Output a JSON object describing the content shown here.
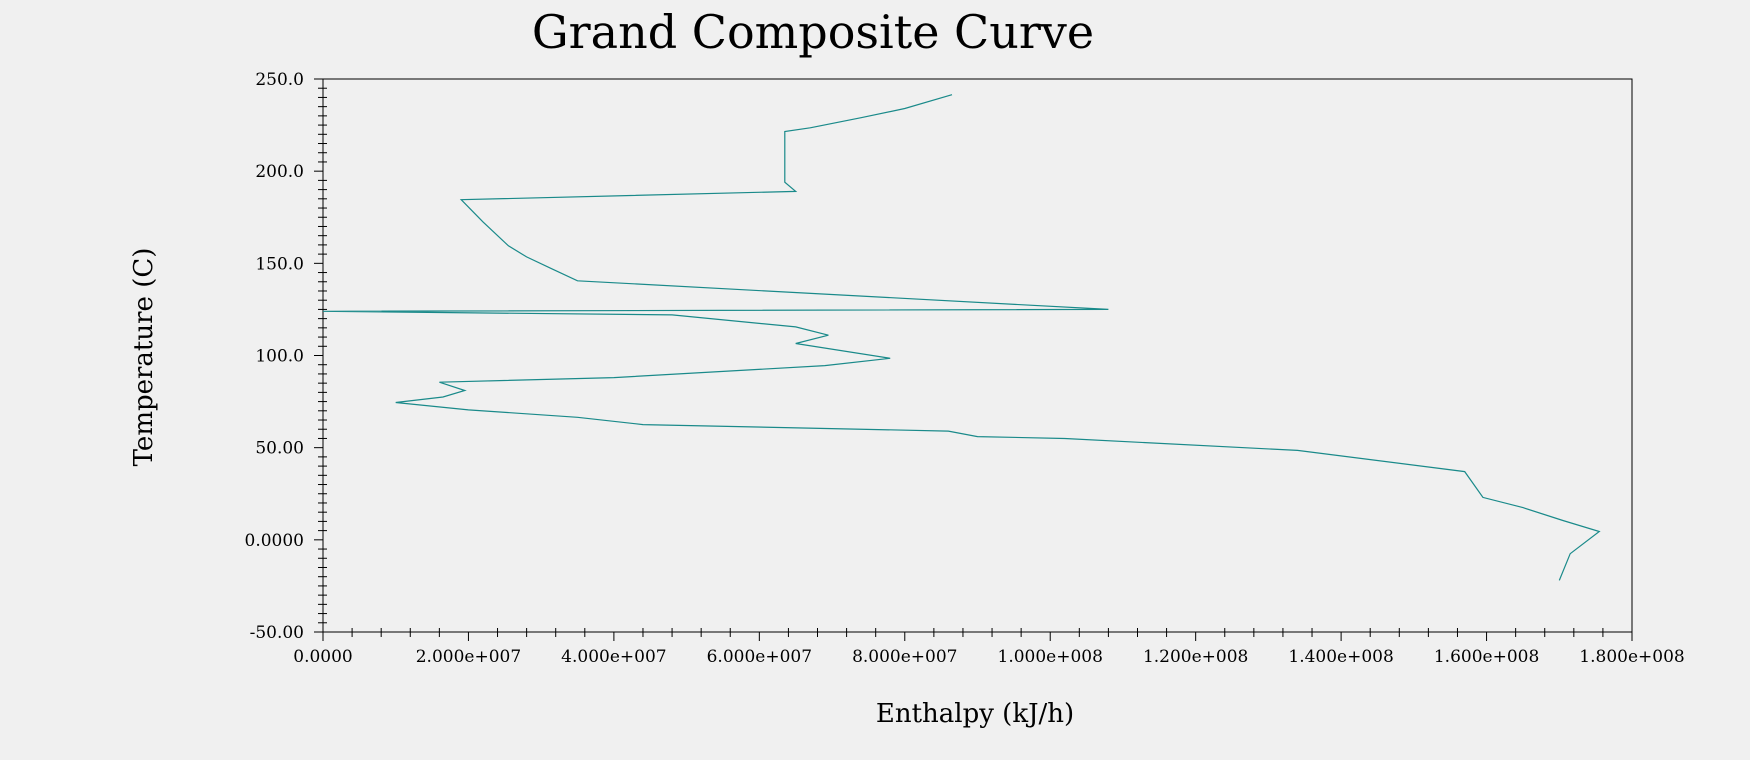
{
  "chart_data": {
    "type": "line",
    "title": "Grand Composite Curve",
    "xlabel": "Enthalpy (kJ/h)",
    "ylabel": "Temperature (C)",
    "xlim": [
      0,
      180000000
    ],
    "ylim": [
      -50,
      250
    ],
    "x_tick_labels": [
      "0.0000",
      "2.000e+007",
      "4.000e+007",
      "6.000e+007",
      "8.000e+007",
      "1.000e+008",
      "1.200e+008",
      "1.400e+008",
      "1.600e+008",
      "1.800e+008"
    ],
    "y_tick_labels": [
      "250.0",
      "200.0",
      "150.0",
      "100.0",
      "50.00",
      "0.0000",
      "-50.00"
    ],
    "line_color": "#1a8a8a",
    "grid": false,
    "series": [
      {
        "x": [
          86500000,
          80000000,
          74000000,
          67000000,
          63500000,
          63500000,
          63500000,
          65000000,
          19000000,
          22000000,
          25500000,
          28000000,
          31500000,
          35000000,
          108000000,
          0,
          48000000,
          65000000,
          69500000,
          65000000,
          78000000,
          69000000,
          40000000,
          16000000,
          19500000,
          16500000,
          10000000,
          20000000,
          35000000,
          44000000,
          86000000,
          90000000,
          102000000,
          134000000,
          157000000,
          159500000,
          165000000,
          170500000,
          175500000,
          171500000,
          170000000
        ],
        "y": [
          241.5,
          234,
          229,
          223.5,
          221.5,
          208,
          194,
          189,
          184.5,
          172.5,
          159.5,
          153.5,
          147,
          140.5,
          125,
          124,
          122,
          115.5,
          111,
          106.5,
          98.5,
          94.5,
          88,
          85.5,
          81,
          77.5,
          74.5,
          70.5,
          66.5,
          62.5,
          59,
          56,
          55,
          48.5,
          37,
          23,
          17.5,
          10.5,
          4.5,
          -7.5,
          -22
        ]
      }
    ]
  }
}
